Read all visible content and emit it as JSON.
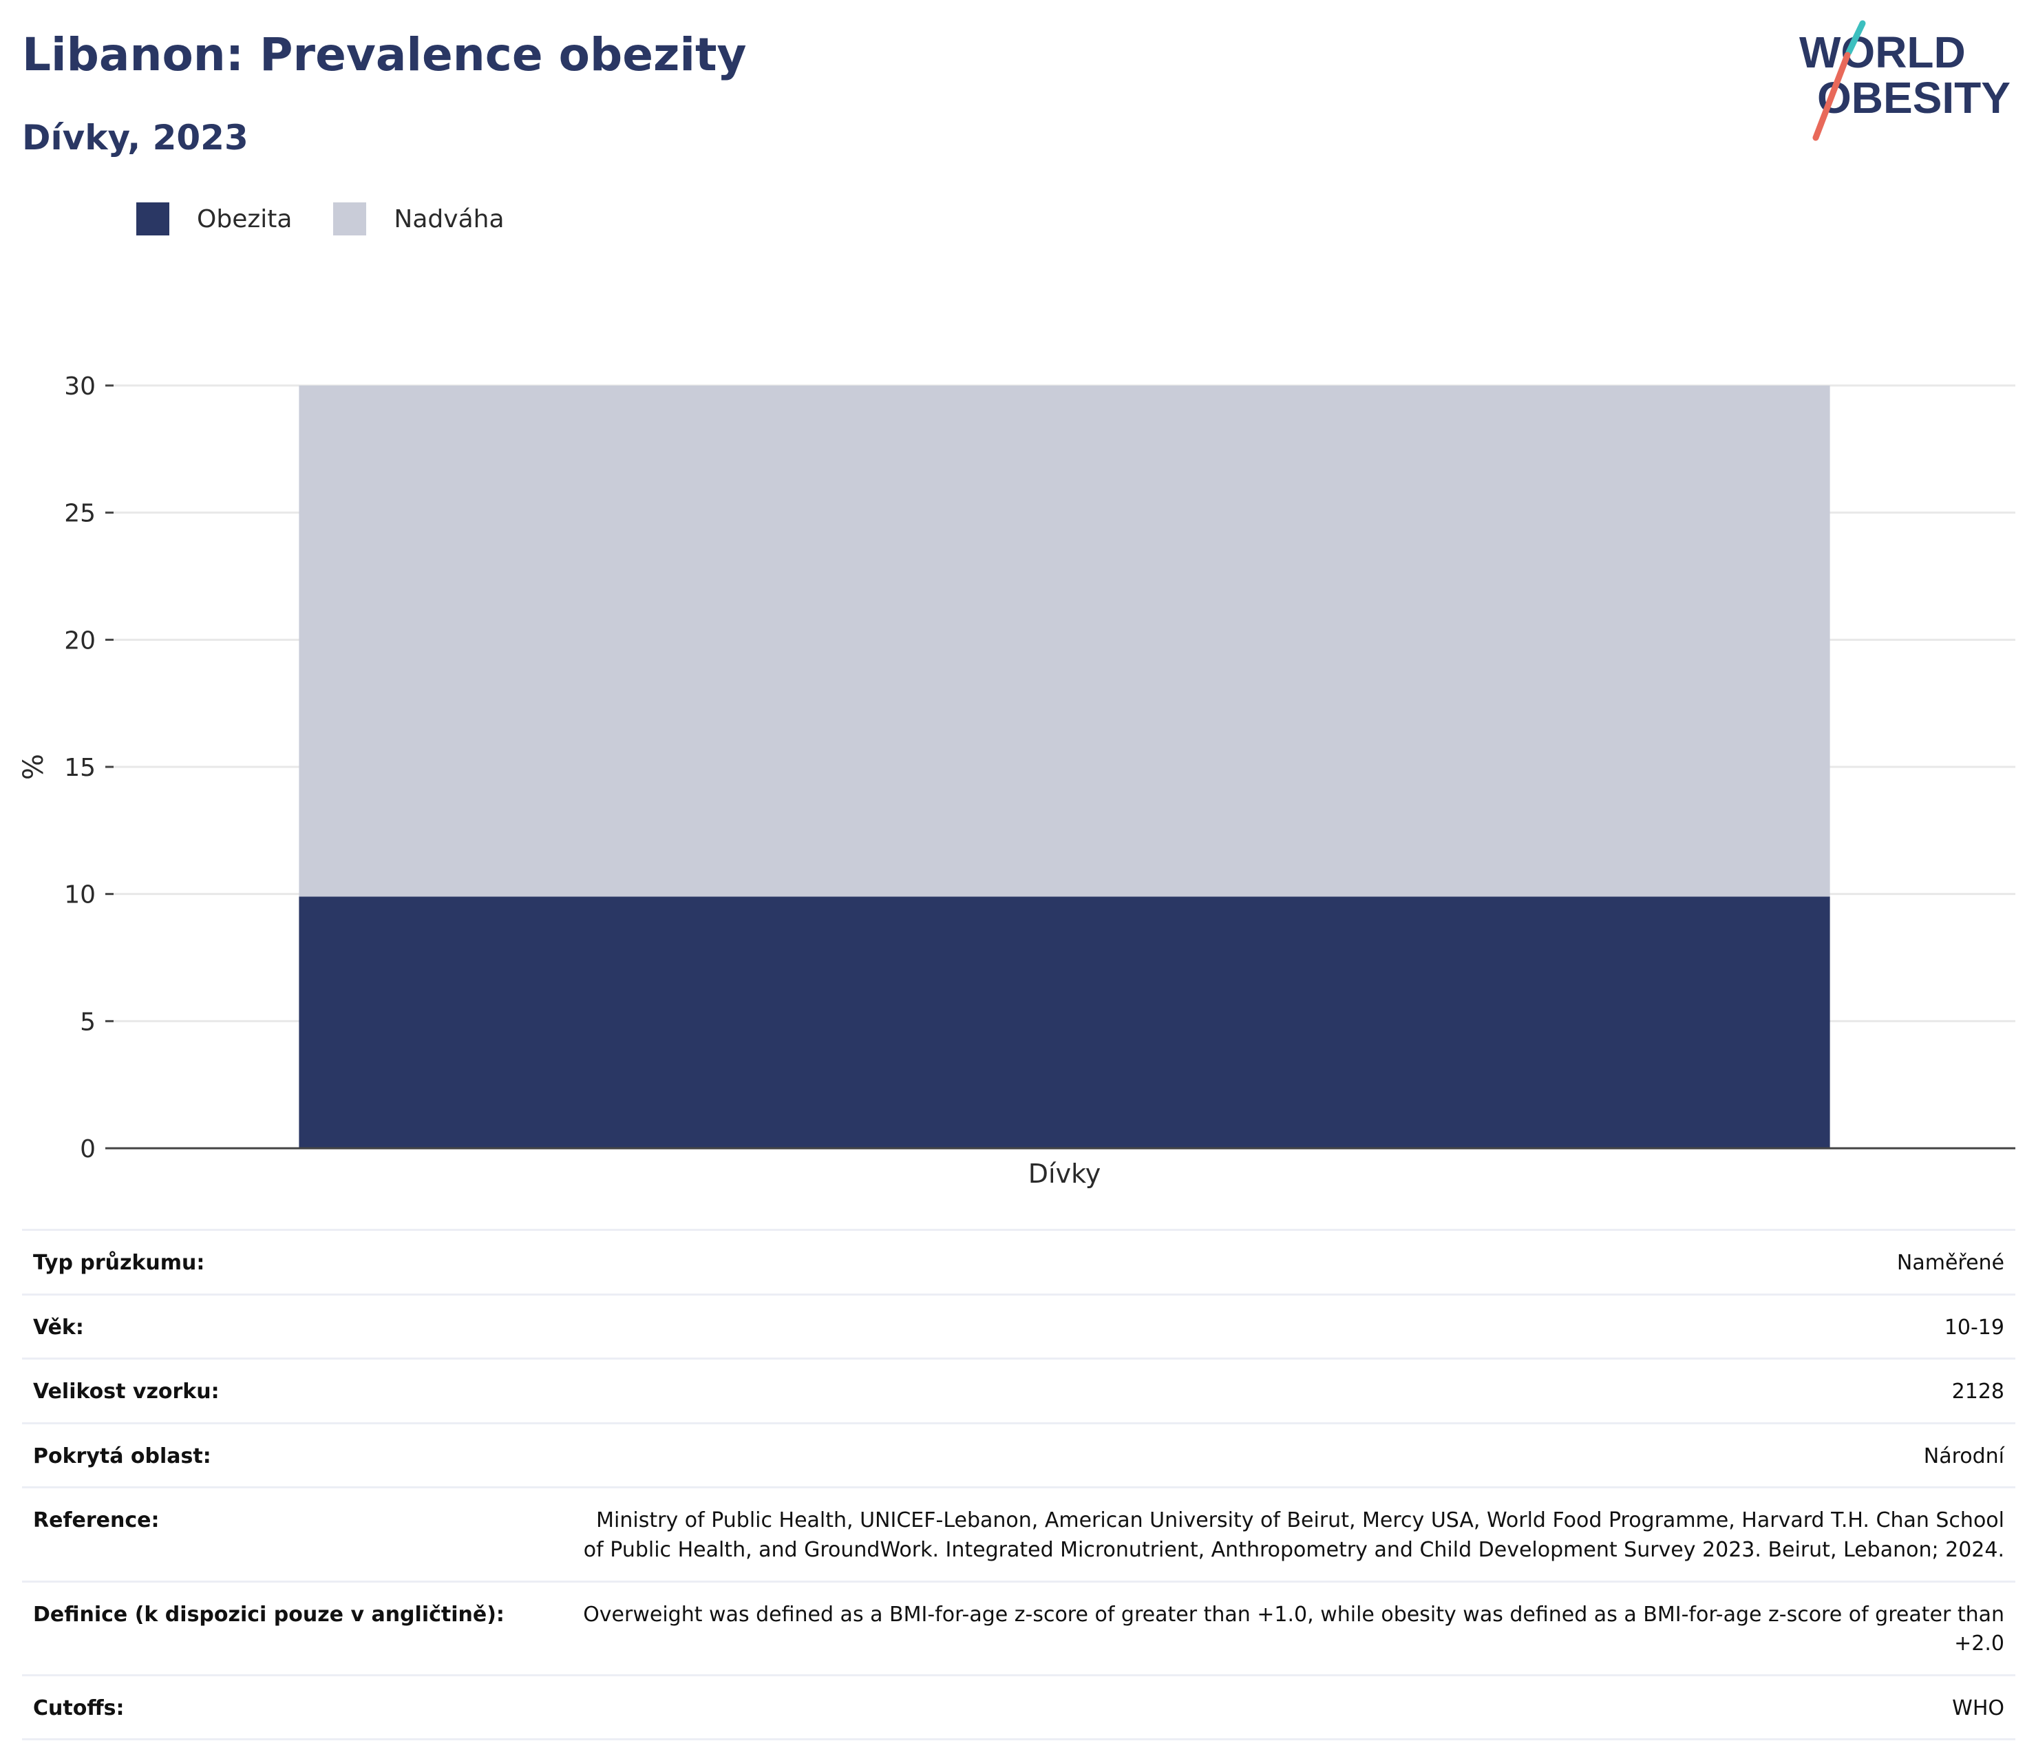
{
  "header": {
    "title": "Libanon: Prevalence obezity",
    "subtitle": "Dívky, 2023"
  },
  "logo": {
    "line1": "WORLD",
    "line2": "OBESITY",
    "colors": {
      "text": "#2a3764",
      "slash_top": "#3cbfbf",
      "slash_bottom": "#e8695a"
    }
  },
  "legend": [
    {
      "label": "Obezita",
      "color": "#2a3764"
    },
    {
      "label": "Nadváha",
      "color": "#c9ccd8"
    }
  ],
  "chart_data": {
    "type": "bar",
    "stacked": true,
    "categories": [
      "Dívky"
    ],
    "series": [
      {
        "name": "Obezita",
        "values": [
          9.9
        ],
        "color": "#2a3764"
      },
      {
        "name": "Nadváha",
        "values": [
          20.1
        ],
        "color": "#c9ccd8"
      }
    ],
    "ylabel": "%",
    "xlabel": "",
    "ylim": [
      0,
      30
    ],
    "yticks": [
      0,
      5,
      10,
      15,
      20,
      25,
      30
    ],
    "grid": true,
    "legend_position": "top-left"
  },
  "info": [
    {
      "label": "Typ průzkumu:",
      "value": "Naměřené"
    },
    {
      "label": "Věk:",
      "value": "10-19"
    },
    {
      "label": "Velikost vzorku:",
      "value": "2128"
    },
    {
      "label": "Pokrytá oblast:",
      "value": "Národní"
    },
    {
      "label": "Reference:",
      "value": "Ministry of Public Health, UNICEF-Lebanon, American University of Beirut, Mercy USA, World Food Programme, Harvard T.H. Chan School of Public Health, and GroundWork. Integrated Micronutrient, Anthropometry and Child Development Survey 2023. Beirut, Lebanon; 2024."
    },
    {
      "label": "Definice (k dispozici pouze v angličtině):",
      "value": "Overweight was defined as a BMI-for-age z-score of greater than +1.0, while obesity was defined as a BMI-for-age z-score of greater than +2.0"
    },
    {
      "label": "Cutoffs:",
      "value": "WHO"
    }
  ]
}
